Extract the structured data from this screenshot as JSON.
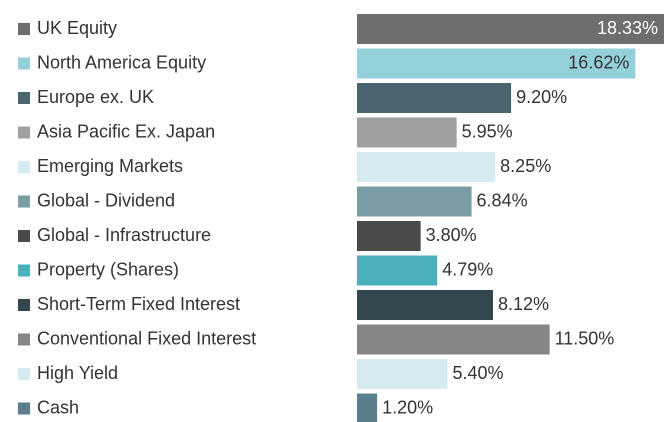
{
  "chart_data": {
    "type": "bar",
    "orientation": "horizontal",
    "categories": [
      "UK Equity",
      "North America Equity",
      "Europe ex. UK",
      "Asia Pacific Ex. Japan",
      "Emerging Markets",
      "Global - Dividend",
      "Global - Infrastructure",
      "Property (Shares)",
      "Short-Term Fixed Interest",
      "Conventional Fixed Interest",
      "High Yield",
      "Cash"
    ],
    "values": [
      18.33,
      16.62,
      9.2,
      5.95,
      8.25,
      6.84,
      3.8,
      4.79,
      8.12,
      11.5,
      5.4,
      1.2
    ],
    "value_labels": [
      "18.33%",
      "16.62%",
      "9.20%",
      "5.95%",
      "8.25%",
      "6.84%",
      "3.80%",
      "4.79%",
      "8.12%",
      "11.50%",
      "5.40%",
      "1.20%"
    ],
    "colors": [
      "#6d6e70",
      "#93d0da",
      "#4a656e",
      "#a0a0a0",
      "#d5ebef",
      "#7b9ea5",
      "#4a4a4a",
      "#4bb0bd",
      "#34474e",
      "#858585",
      "#d5ebef",
      "#5b7f8a"
    ]
  }
}
